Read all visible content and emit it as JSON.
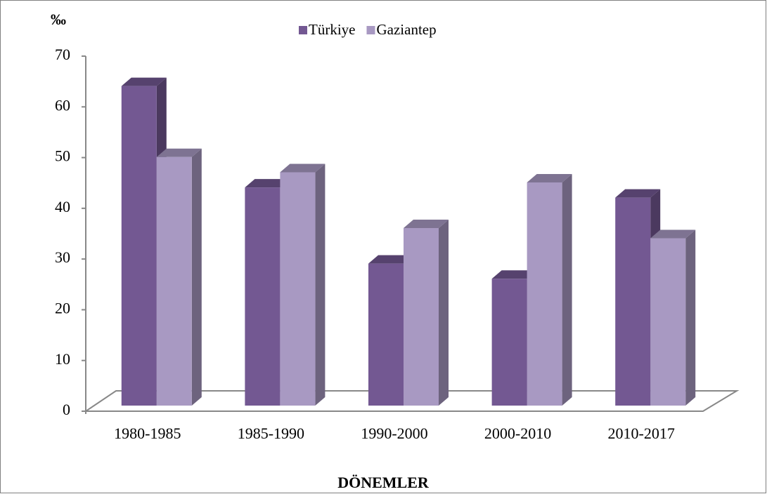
{
  "chart_data": {
    "type": "bar3d",
    "y_label": "‰",
    "x_label": "DÖNEMLER",
    "categories": [
      "1980-1985",
      "1985-1990",
      "1990-2000",
      "2000-2010",
      "2010-2017"
    ],
    "series": [
      {
        "name": "Türkiye",
        "color": "#735892",
        "values": [
          63,
          43,
          28,
          25,
          41
        ]
      },
      {
        "name": "Gaziantep",
        "color": "#a899c2",
        "values": [
          49,
          46,
          35,
          44,
          33
        ]
      }
    ],
    "ylim": [
      0,
      70
    ],
    "yticks": [
      0,
      10,
      20,
      30,
      40,
      50,
      60,
      70
    ],
    "grid": false,
    "legend": "top"
  }
}
